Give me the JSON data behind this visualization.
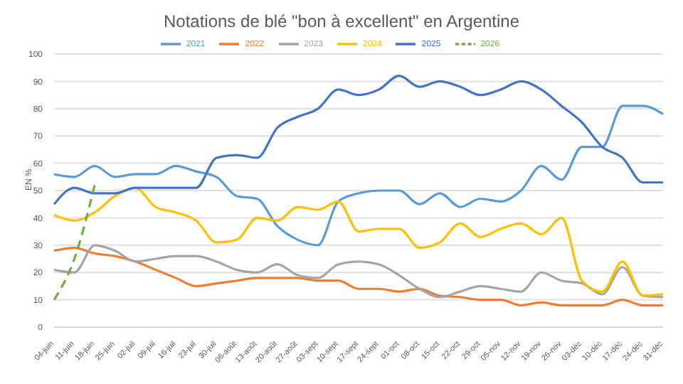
{
  "chart_data": {
    "type": "line",
    "title": "Notations de blé \"bon à excellent\" en Argentine",
    "ylabel": "EN %",
    "categories": [
      "04-juin",
      "11-juin",
      "18-juin",
      "25-juin",
      "02-juil",
      "09-juil",
      "16-juil",
      "23-juil",
      "30-juil",
      "06-août",
      "13-août",
      "20-août",
      "27-août",
      "03-sept",
      "10-sept",
      "17-sept",
      "24-sept",
      "01-oct",
      "08-oct",
      "15-oct",
      "22-oct",
      "29-oct",
      "05-nov",
      "12-nov",
      "19-nov",
      "26-nov",
      "03-déc",
      "10-déc",
      "17-déc",
      "24-déc",
      "31-déc"
    ],
    "series": [
      {
        "name": "2021",
        "color": "#5b9bd5",
        "values": [
          56,
          55,
          59,
          55,
          56,
          56,
          59,
          57,
          55,
          48,
          47,
          37,
          32,
          30,
          46,
          49,
          50,
          50,
          45,
          49,
          44,
          47,
          46,
          50,
          59,
          54,
          66,
          66,
          81,
          81,
          78
        ]
      },
      {
        "name": "2022",
        "color": "#ed7d31",
        "values": [
          28,
          29,
          27,
          26,
          24,
          21,
          18,
          15,
          16,
          17,
          18,
          18,
          18,
          17,
          17,
          14,
          14,
          13,
          14,
          11.5,
          11,
          10,
          10,
          8,
          9,
          8,
          8,
          8,
          10,
          8,
          8
        ]
      },
      {
        "name": "2023",
        "color": "#a5a5a5",
        "values": [
          21,
          20,
          30,
          28,
          24,
          25,
          26,
          26,
          24,
          21,
          20,
          23,
          19,
          18,
          23,
          24,
          23,
          19,
          14,
          11,
          13,
          15,
          14,
          13,
          20,
          17,
          16,
          12,
          22,
          11.5,
          11
        ]
      },
      {
        "name": "2024",
        "color": "#ffc000",
        "values": [
          41,
          39,
          42,
          48,
          51,
          44,
          42,
          39,
          31,
          32,
          40,
          39,
          44,
          43,
          46,
          35,
          36,
          36,
          29,
          31,
          38,
          33,
          36,
          38,
          34,
          40,
          17,
          13,
          24,
          11.5,
          12
        ]
      },
      {
        "name": "2025",
        "color": "#4472c4",
        "values": [
          45,
          51,
          49,
          49,
          51,
          51,
          51,
          51,
          62,
          63,
          62,
          73,
          77,
          80,
          87,
          85,
          87,
          92,
          88,
          90,
          88,
          85,
          87,
          90,
          87,
          81,
          75,
          66,
          62,
          53,
          53
        ]
      },
      {
        "name": "2026",
        "color": "#70ad47",
        "line_style": "dashed",
        "values": [
          10,
          25,
          52,
          null,
          null,
          null,
          null,
          null,
          null,
          null,
          null,
          null,
          null,
          null,
          null,
          null,
          null,
          null,
          null,
          null,
          null,
          null,
          null,
          null,
          null,
          null,
          null,
          null,
          null,
          null,
          null
        ]
      }
    ],
    "ylim": [
      0,
      100
    ],
    "yticks": [
      0,
      10,
      20,
      30,
      40,
      50,
      60,
      70,
      80,
      90,
      100
    ],
    "grid": "y",
    "legend": "top",
    "marker": "none",
    "line_style": "solid"
  }
}
